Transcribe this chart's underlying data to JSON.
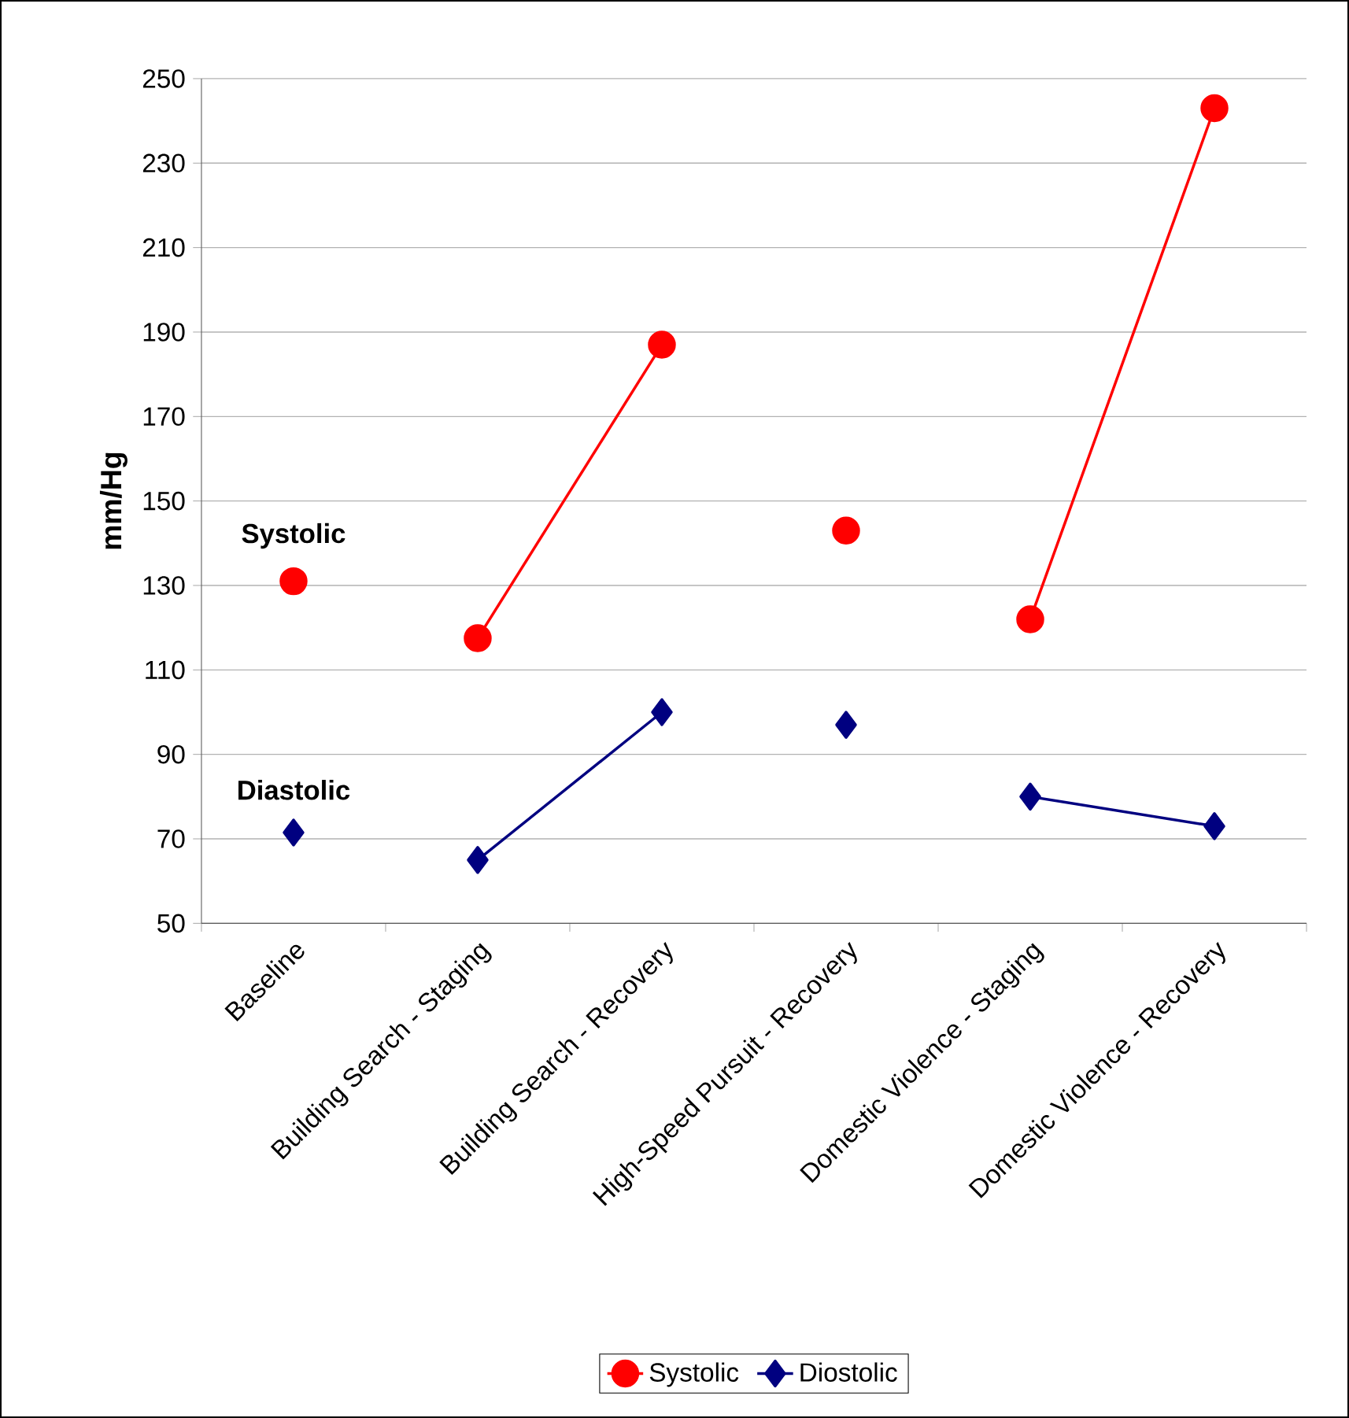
{
  "chart_data": {
    "type": "line",
    "ylabel": "mm/Hg",
    "categories": [
      "Baseline",
      "Building Search - Staging",
      "Building Search - Recovery",
      "High-Speed Pursuit - Recovery",
      "Domestic Violence - Staging",
      "Domestic Violence - Recovery"
    ],
    "series": [
      {
        "name": "Systolic",
        "color": "#ff0000",
        "marker": "circle",
        "values": [
          131,
          null,
          null,
          143,
          null,
          null
        ]
      },
      {
        "color": "#ff0000",
        "marker": "circle",
        "values": [
          null,
          117.5,
          187,
          null,
          null,
          null
        ]
      },
      {
        "color": "#ff0000",
        "marker": "circle",
        "values": [
          null,
          null,
          null,
          null,
          122,
          243
        ]
      },
      {
        "name": "Diostolic",
        "color": "#000080",
        "marker": "diamond",
        "values": [
          71.5,
          null,
          null,
          97,
          null,
          null
        ]
      },
      {
        "color": "#000080",
        "marker": "diamond",
        "values": [
          null,
          65,
          100,
          null,
          null,
          null
        ]
      },
      {
        "color": "#000080",
        "marker": "diamond",
        "values": [
          null,
          null,
          null,
          null,
          80,
          73
        ]
      }
    ],
    "annotations": [
      "Systolic",
      "Diastolic"
    ],
    "ylim": [
      50,
      250
    ],
    "yticks": [
      50,
      70,
      90,
      110,
      130,
      150,
      170,
      190,
      210,
      230,
      250
    ],
    "grid": "y",
    "legend": "bottom",
    "line_style": "solid"
  }
}
